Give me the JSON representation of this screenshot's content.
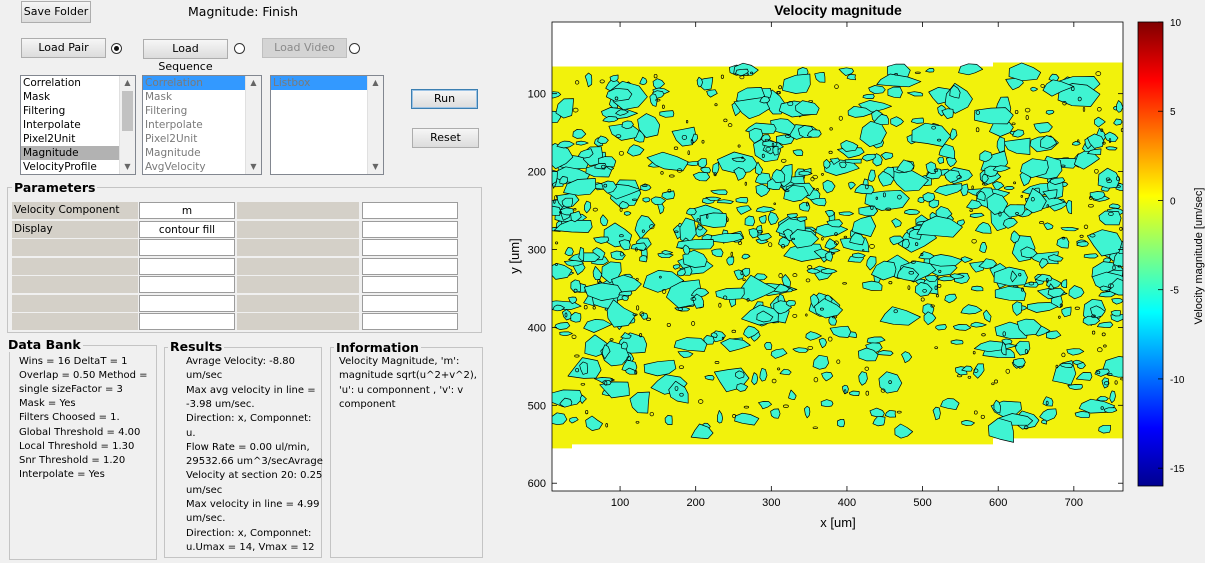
{
  "top": {
    "save_folder": "Save Folder",
    "status": "Magnitude: Finish"
  },
  "load": {
    "pair": "Load Pair",
    "sequence": "Load Sequence",
    "video": "Load Video"
  },
  "list1": [
    "Correlation",
    "Mask",
    "Filtering",
    "Interpolate",
    "Pixel2Unit",
    "Magnitude",
    "VelocityProfile"
  ],
  "list1_selected": "Magnitude",
  "list2": [
    "Correlation",
    "Mask",
    "Filtering",
    "Interpolate",
    "Pixel2Unit",
    "Magnitude",
    "AvgVelocity"
  ],
  "list3": [
    "Listbox"
  ],
  "actions": {
    "run": "Run",
    "reset": "Reset"
  },
  "parameters": {
    "title": "Parameters",
    "rows": [
      {
        "label": "Velocity Component",
        "value": "m"
      },
      {
        "label": "Display",
        "value": "contour fill"
      },
      {
        "label": "",
        "value": ""
      },
      {
        "label": "",
        "value": ""
      },
      {
        "label": "",
        "value": ""
      },
      {
        "label": "",
        "value": ""
      },
      {
        "label": "",
        "value": ""
      }
    ]
  },
  "databank": {
    "title": "Data Bank",
    "lines": [
      "Wins = 16  DeltaT = 1",
      "Overlap = 0.50  Method =",
      "single  sizeFactor = 3",
      "Mask = Yes",
      "Filters Choosed = 1.",
      "Global Threshold = 4.00",
      "Local Threshold = 1.30",
      "Snr Threshold = 1.20",
      "Interpolate = Yes"
    ]
  },
  "results": {
    "title": "Results",
    "lines": [
      "Avrage Velocity: -8.80",
      "um/sec",
      "Max avg velocity in line =",
      "-3.98 um/sec.",
      "Direction: x,  Componnet:",
      "u.",
      "Flow Rate = 0.00 ul/min,",
      "29532.66 um^3/secAvrage",
      "Velocity at section 20: 0.25",
      "um/sec",
      "Max velocity in line = 4.99",
      "um/sec.",
      "Direction: x,  Componnet:",
      "u.Umax = 14, Vmax = 12"
    ]
  },
  "information": {
    "title": "Information",
    "lines": [
      "Velocity Magnitude, 'm':",
      "magnitude sqrt(u^2+v^2),",
      "'u': u componnent , 'v': v",
      "component"
    ]
  },
  "chart_data": {
    "type": "heatmap",
    "title": "Velocity magnitude",
    "xlabel": "x [um]",
    "ylabel": "y [um]",
    "xlim": [
      10,
      765
    ],
    "ylim": [
      610,
      8
    ],
    "xticks": [
      100,
      200,
      300,
      400,
      500,
      600,
      700
    ],
    "yticks": [
      100,
      200,
      300,
      400,
      500,
      600
    ],
    "colorbar": {
      "label": "Velocity magnitude [um/sec]",
      "range": [
        -16,
        10
      ],
      "ticks": [
        10,
        5,
        0,
        -5,
        -10,
        -15
      ],
      "colormap": "jet"
    },
    "field_extent": {
      "x": [
        10,
        765
      ],
      "y": [
        60,
        545
      ]
    },
    "levels": [
      {
        "name": "background",
        "color": "#f2f20c"
      },
      {
        "name": "low",
        "color": "#3ff4d2"
      }
    ],
    "grid": false
  }
}
